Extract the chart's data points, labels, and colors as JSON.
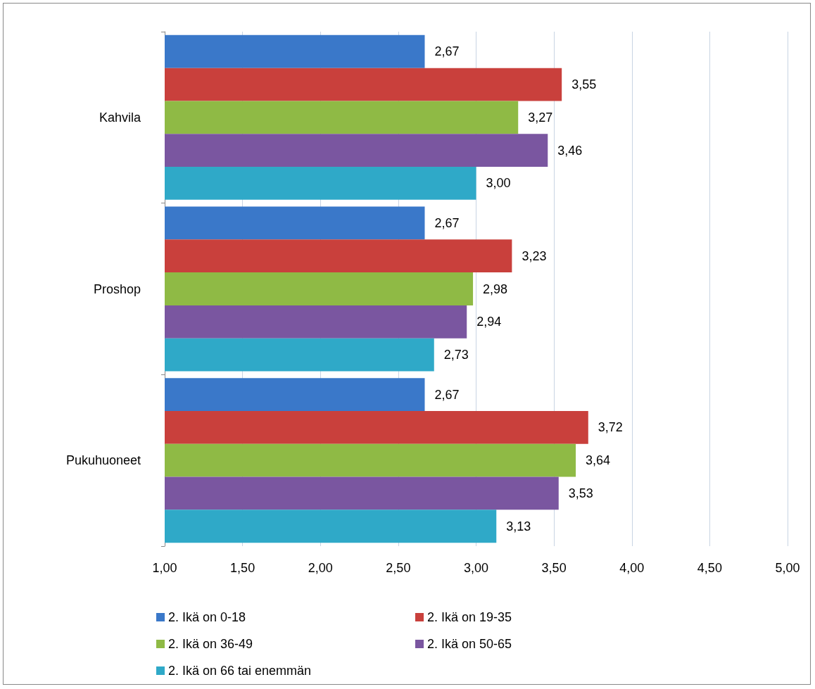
{
  "chart_data": {
    "type": "bar",
    "orientation": "horizontal",
    "categories": [
      "Kahvila",
      "Proshop",
      "Pukuhuoneet"
    ],
    "series": [
      {
        "name": "2. Ikä on 0-18",
        "color": "#3a78c9",
        "values": [
          2.67,
          2.67,
          2.67
        ],
        "value_labels": [
          "2,67",
          "2,67",
          "2,67"
        ]
      },
      {
        "name": "2. Ikä on 19-35",
        "color": "#c9403c",
        "values": [
          3.55,
          3.23,
          3.72
        ],
        "value_labels": [
          "3,55",
          "3,23",
          "3,72"
        ]
      },
      {
        "name": "2. Ikä on 36-49",
        "color": "#8fba45",
        "values": [
          3.27,
          2.98,
          3.64
        ],
        "value_labels": [
          "3,27",
          "2,98",
          "3,64"
        ]
      },
      {
        "name": "2. Ikä on 50-65",
        "color": "#7a56a0",
        "values": [
          3.46,
          2.94,
          3.53
        ],
        "value_labels": [
          "3,46",
          "2,94",
          "3,53"
        ]
      },
      {
        "name": "2. Ikä on 66 tai enemmän",
        "color": "#2fa9c8",
        "values": [
          3.0,
          2.73,
          3.13
        ],
        "value_labels": [
          "3,00",
          "2,73",
          "3,13"
        ]
      }
    ],
    "xlim": [
      1,
      5
    ],
    "xticks": [
      {
        "value": 1,
        "label": "1,00"
      },
      {
        "value": 1.5,
        "label": "1,50"
      },
      {
        "value": 2,
        "label": "2,00"
      },
      {
        "value": 2.5,
        "label": "2,50"
      },
      {
        "value": 3,
        "label": "3,00"
      },
      {
        "value": 3.5,
        "label": "3,50"
      },
      {
        "value": 4,
        "label": "4,00"
      },
      {
        "value": 4.5,
        "label": "4,50"
      },
      {
        "value": 5,
        "label": "5,00"
      }
    ],
    "grid": "x",
    "legend": "bottom"
  }
}
